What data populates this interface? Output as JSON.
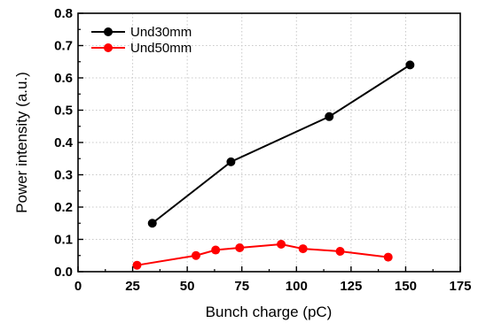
{
  "chart_data": {
    "type": "line",
    "title": "",
    "xlabel": "Bunch charge (pC)",
    "ylabel": "Power intensity (a.u.)",
    "xlim": [
      0,
      175
    ],
    "ylim": [
      0.0,
      0.8
    ],
    "xticks": [
      "0",
      "25",
      "50",
      "75",
      "100",
      "125",
      "150",
      "175"
    ],
    "yticks": [
      "0.0",
      "0.1",
      "0.2",
      "0.3",
      "0.4",
      "0.5",
      "0.6",
      "0.7",
      "0.8"
    ],
    "grid": true,
    "legend_position": "top-left",
    "series": [
      {
        "name": "Und30mm",
        "color": "#000000",
        "x": [
          34,
          70,
          115,
          152
        ],
        "y": [
          0.15,
          0.34,
          0.48,
          0.64
        ]
      },
      {
        "name": "Und50mm",
        "color": "#ff0000",
        "x": [
          27,
          54,
          63,
          74,
          93,
          103,
          120,
          142
        ],
        "y": [
          0.02,
          0.05,
          0.067,
          0.074,
          0.085,
          0.071,
          0.063,
          0.045
        ]
      }
    ]
  }
}
